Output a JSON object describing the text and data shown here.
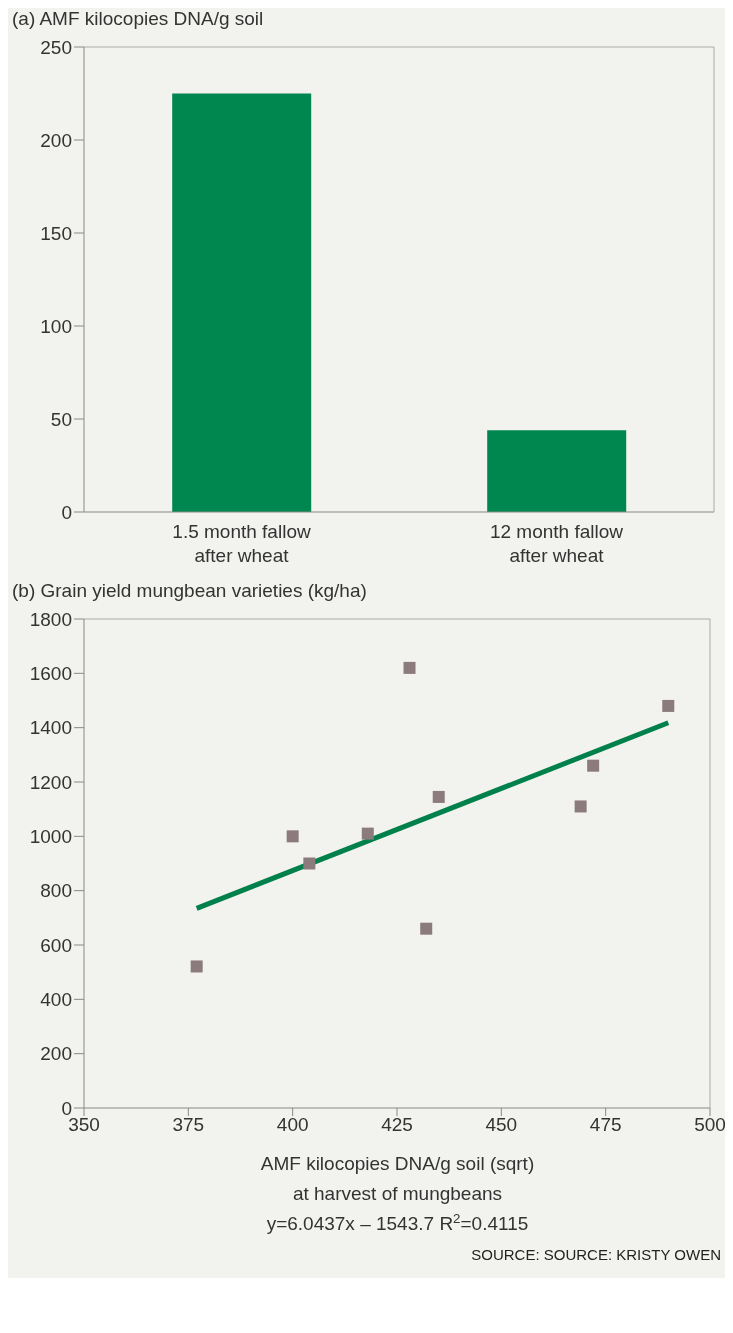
{
  "chart_data": [
    {
      "type": "bar",
      "title": "(a) AMF kilocopies DNA/g soil",
      "categories": [
        "1.5 month fallow after wheat",
        "12 month fallow after wheat"
      ],
      "values": [
        225,
        44
      ],
      "color": "#00874f",
      "ylim": [
        0,
        250
      ],
      "yticks": [
        0,
        50,
        100,
        150,
        200,
        250
      ]
    },
    {
      "type": "scatter",
      "title": "(b) Grain yield mungbean varieties (kg/ha)",
      "xlabel": "AMF kilocopies DNA/g soil (sqrt)\nat harvest of mungbeans",
      "series": [
        {
          "type": "scatter",
          "marker": "square",
          "color": "#8c7b7d",
          "x": [
            377,
            400,
            404,
            418,
            428,
            432,
            435,
            469,
            472,
            490
          ],
          "values": [
            521,
            1000,
            900,
            1010,
            1620,
            660,
            1145,
            1110,
            1260,
            1480
          ]
        },
        {
          "type": "line",
          "color": "#00804a",
          "x": [
            377,
            490
          ],
          "values": [
            735,
            1418
          ]
        }
      ],
      "xlim": [
        350,
        500
      ],
      "xticks": [
        350,
        375,
        400,
        425,
        450,
        475,
        500
      ],
      "ylim": [
        0,
        1800
      ],
      "yticks": [
        0,
        200,
        400,
        600,
        800,
        1000,
        1200,
        1400,
        1600,
        1800
      ],
      "annotations": [
        "y=6.0437x – 1543.7   R$^{2}$=0.4115",
        "SOURCE: SOURCE: KRISTY OWEN"
      ]
    }
  ]
}
